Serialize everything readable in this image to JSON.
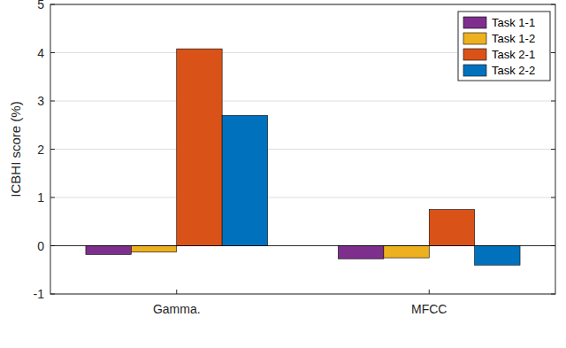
{
  "chart_data": {
    "type": "bar",
    "y_label": "ICBHI score (%)",
    "categories": [
      "Gamma.",
      "MFCC"
    ],
    "series": [
      {
        "name": "Task 1-1",
        "color": "#7e2f8e",
        "values": [
          -0.18,
          -0.27
        ]
      },
      {
        "name": "Task 1-2",
        "color": "#edb120",
        "values": [
          -0.13,
          -0.25
        ]
      },
      {
        "name": "Task 2-1",
        "color": "#d95319",
        "values": [
          4.08,
          0.75
        ]
      },
      {
        "name": "Task 2-2",
        "color": "#0072bd",
        "values": [
          2.7,
          -0.4
        ]
      }
    ],
    "ylim": [
      -1,
      5
    ],
    "yticks": [
      -1,
      0,
      1,
      2,
      3,
      4,
      5
    ],
    "grid": true,
    "legend": "upper-right"
  }
}
